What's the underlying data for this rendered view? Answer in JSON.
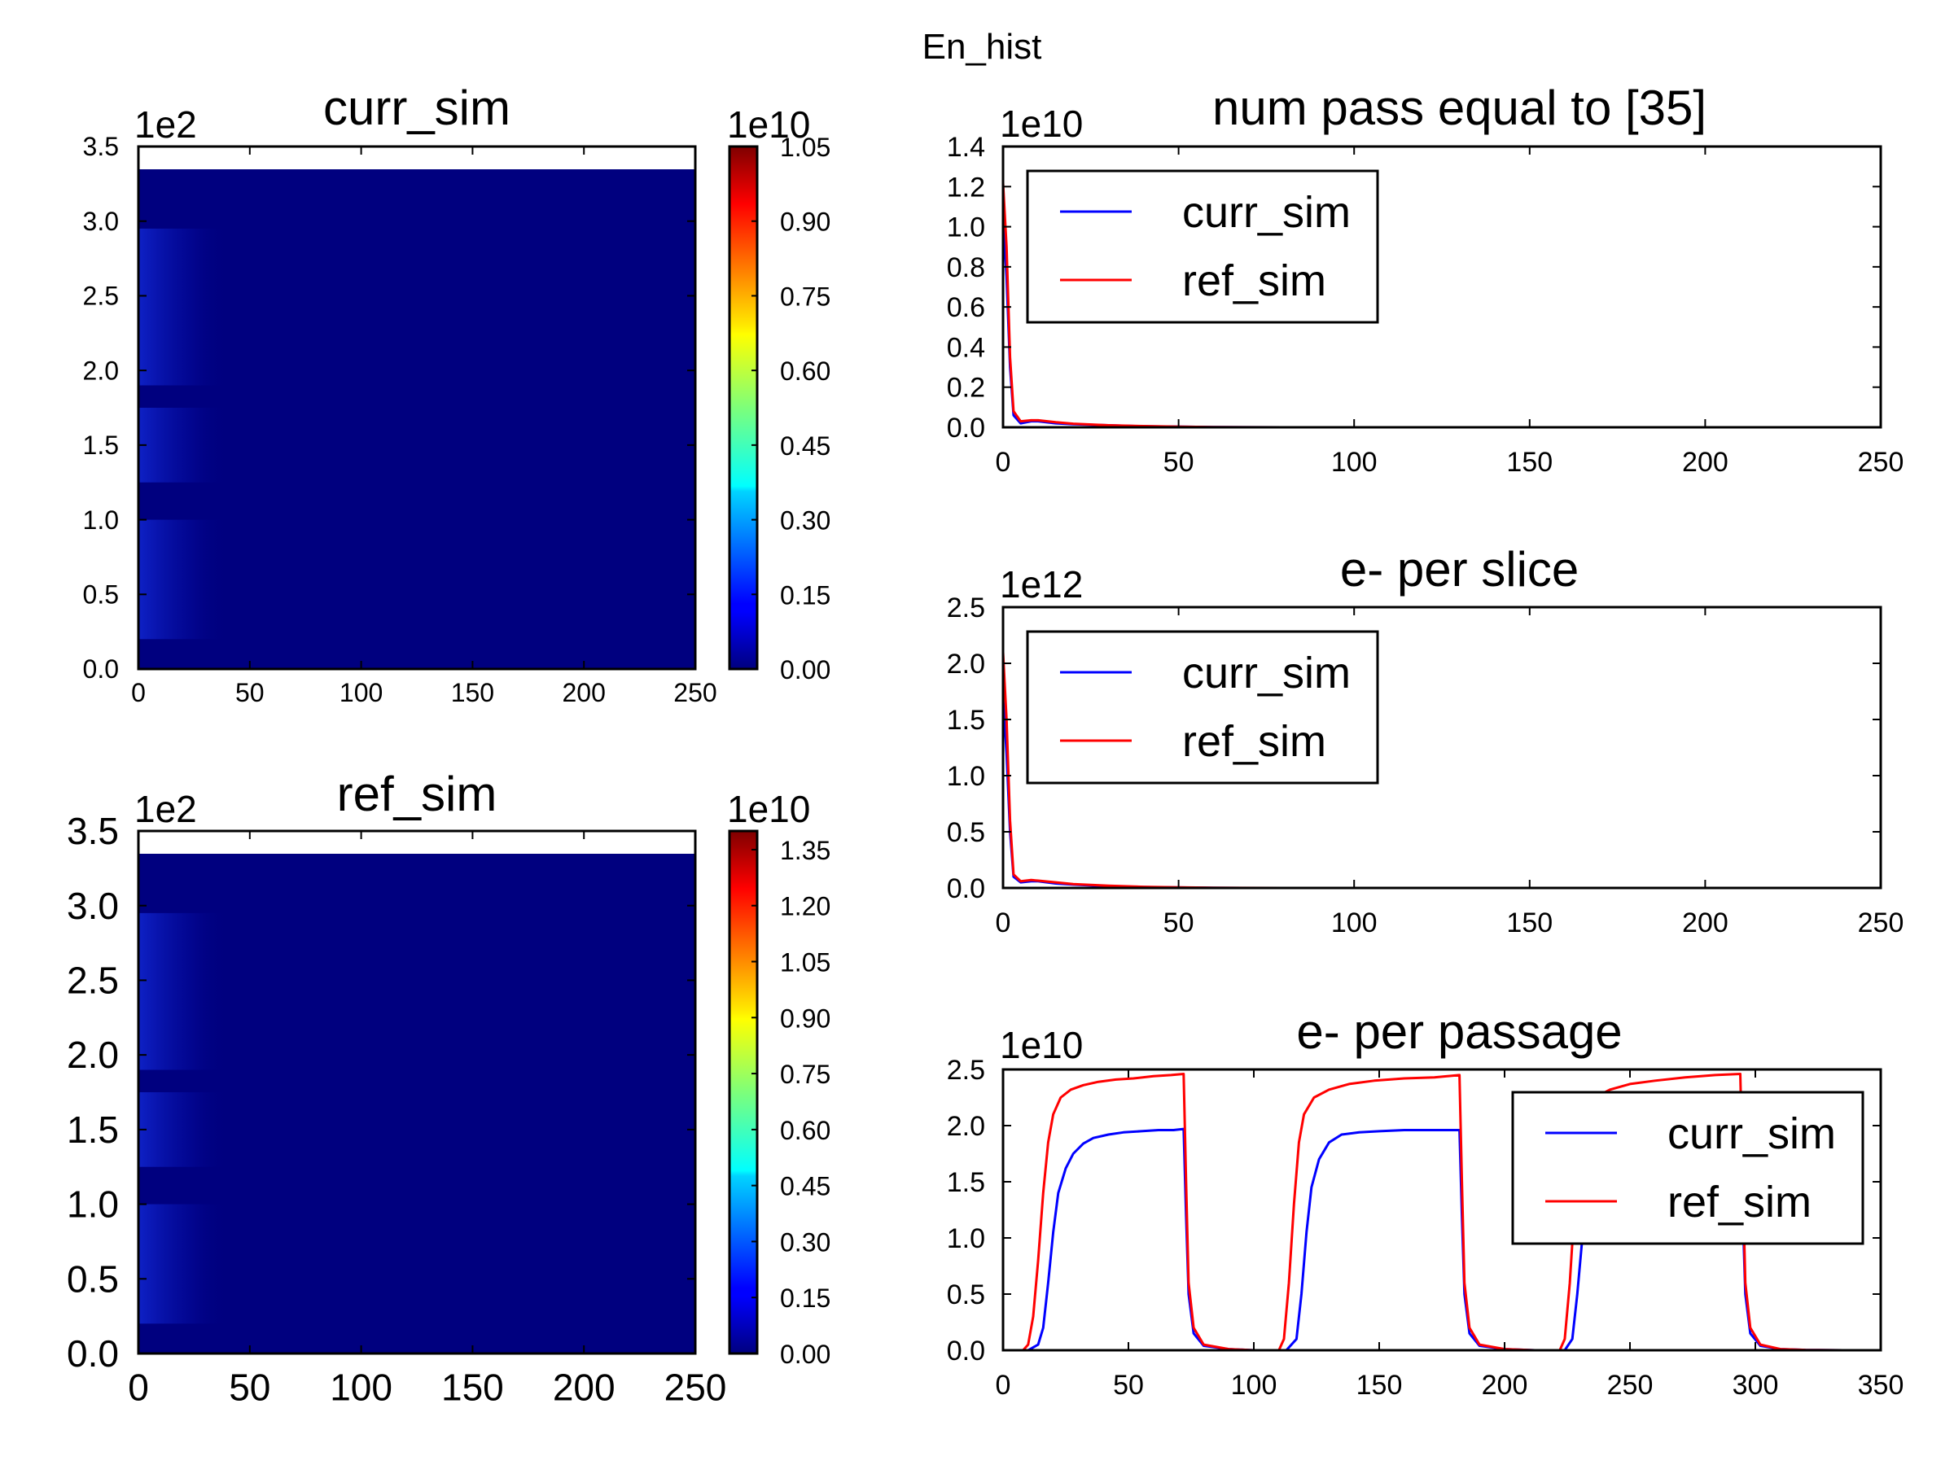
{
  "figure_title": "En_hist",
  "chart_data": [
    {
      "id": "curr_heat",
      "type": "heatmap",
      "title": "curr_sim",
      "x_ticks": [
        "0",
        "50",
        "100",
        "150",
        "200",
        "250"
      ],
      "y_ticks": [
        "0.0",
        "0.5",
        "1.0",
        "1.5",
        "2.0",
        "2.5",
        "3.0",
        "3.5"
      ],
      "y_multiplier": "1e2",
      "xlim": [
        0,
        250
      ],
      "ylim": [
        0,
        350
      ],
      "data_top": 335,
      "colorbar": {
        "multiplier": "1e10",
        "range": [
          0,
          1.05
        ],
        "ticks": [
          "0.00",
          "0.15",
          "0.30",
          "0.45",
          "0.60",
          "0.75",
          "0.90",
          "1.05"
        ]
      },
      "fill_color": "#00007f"
    },
    {
      "id": "ref_heat",
      "type": "heatmap",
      "title": "ref_sim",
      "x_ticks": [
        "0",
        "50",
        "100",
        "150",
        "200",
        "250"
      ],
      "y_ticks": [
        "0.0",
        "0.5",
        "1.0",
        "1.5",
        "2.0",
        "2.5",
        "3.0",
        "3.5"
      ],
      "y_multiplier": "1e2",
      "xlim": [
        0,
        250
      ],
      "ylim": [
        0,
        350
      ],
      "data_top": 335,
      "colorbar": {
        "multiplier": "1e10",
        "range": [
          0,
          1.4
        ],
        "ticks": [
          "0.00",
          "0.15",
          "0.30",
          "0.45",
          "0.60",
          "0.75",
          "0.90",
          "1.05",
          "1.20",
          "1.35"
        ]
      },
      "fill_color": "#00007f"
    },
    {
      "id": "num_pass",
      "type": "line",
      "title": "num pass equal to [35]",
      "y_multiplier": "1e10",
      "xlim": [
        0,
        250
      ],
      "ylim": [
        0,
        1.4
      ],
      "x_ticks": [
        "0",
        "50",
        "100",
        "150",
        "200",
        "250"
      ],
      "y_ticks": [
        "0.0",
        "0.2",
        "0.4",
        "0.6",
        "0.8",
        "1.0",
        "1.2",
        "1.4"
      ],
      "legend_position": "top-left",
      "series": [
        {
          "name": "curr_sim",
          "color": "#0000ff",
          "points": [
            [
              0,
              1.05
            ],
            [
              1,
              0.75
            ],
            [
              2,
              0.3
            ],
            [
              3,
              0.06
            ],
            [
              5,
              0.02
            ],
            [
              8,
              0.03
            ],
            [
              10,
              0.03
            ],
            [
              15,
              0.02
            ],
            [
              20,
              0.015
            ],
            [
              30,
              0.01
            ],
            [
              40,
              0.005
            ],
            [
              50,
              0.003
            ],
            [
              60,
              0.001
            ],
            [
              80,
              0
            ],
            [
              250,
              0
            ]
          ]
        },
        {
          "name": "ref_sim",
          "color": "#ff0000",
          "points": [
            [
              0,
              1.22
            ],
            [
              1,
              0.9
            ],
            [
              2,
              0.35
            ],
            [
              3,
              0.08
            ],
            [
              5,
              0.03
            ],
            [
              8,
              0.035
            ],
            [
              10,
              0.035
            ],
            [
              15,
              0.025
            ],
            [
              20,
              0.018
            ],
            [
              30,
              0.01
            ],
            [
              40,
              0.006
            ],
            [
              50,
              0.003
            ],
            [
              60,
              0.001
            ],
            [
              80,
              0
            ],
            [
              250,
              0
            ]
          ]
        }
      ]
    },
    {
      "id": "per_slice",
      "type": "line",
      "title": "e- per slice",
      "y_multiplier": "1e12",
      "xlim": [
        0,
        250
      ],
      "ylim": [
        0,
        2.5
      ],
      "x_ticks": [
        "0",
        "50",
        "100",
        "150",
        "200",
        "250"
      ],
      "y_ticks": [
        "0.0",
        "0.5",
        "1.0",
        "1.5",
        "2.0",
        "2.5"
      ],
      "legend_position": "top-left",
      "series": [
        {
          "name": "curr_sim",
          "color": "#0000ff",
          "points": [
            [
              0,
              1.7
            ],
            [
              1,
              1.2
            ],
            [
              2,
              0.5
            ],
            [
              3,
              0.1
            ],
            [
              5,
              0.05
            ],
            [
              8,
              0.06
            ],
            [
              10,
              0.06
            ],
            [
              15,
              0.04
            ],
            [
              20,
              0.03
            ],
            [
              30,
              0.015
            ],
            [
              40,
              0.008
            ],
            [
              50,
              0.004
            ],
            [
              60,
              0.001
            ],
            [
              80,
              0
            ],
            [
              250,
              0
            ]
          ]
        },
        {
          "name": "ref_sim",
          "color": "#ff0000",
          "points": [
            [
              0,
              2.1
            ],
            [
              1,
              1.5
            ],
            [
              2,
              0.6
            ],
            [
              3,
              0.12
            ],
            [
              5,
              0.06
            ],
            [
              8,
              0.07
            ],
            [
              10,
              0.065
            ],
            [
              15,
              0.05
            ],
            [
              20,
              0.035
            ],
            [
              30,
              0.02
            ],
            [
              40,
              0.01
            ],
            [
              50,
              0.005
            ],
            [
              60,
              0.002
            ],
            [
              80,
              0
            ],
            [
              250,
              0
            ]
          ]
        }
      ]
    },
    {
      "id": "per_passage",
      "type": "line",
      "title": "e- per passage",
      "y_multiplier": "1e10",
      "xlim": [
        0,
        350
      ],
      "ylim": [
        0,
        2.5
      ],
      "x_ticks": [
        "0",
        "50",
        "100",
        "150",
        "200",
        "250",
        "300",
        "350"
      ],
      "y_ticks": [
        "0.0",
        "0.5",
        "1.0",
        "1.5",
        "2.0",
        "2.5"
      ],
      "legend_position": "upper-right",
      "series": [
        {
          "name": "curr_sim",
          "color": "#0000ff",
          "points": [
            [
              0,
              0
            ],
            [
              10,
              0
            ],
            [
              14,
              0.05
            ],
            [
              16,
              0.2
            ],
            [
              18,
              0.6
            ],
            [
              20,
              1.05
            ],
            [
              22,
              1.4
            ],
            [
              25,
              1.62
            ],
            [
              28,
              1.75
            ],
            [
              32,
              1.84
            ],
            [
              36,
              1.89
            ],
            [
              42,
              1.92
            ],
            [
              48,
              1.94
            ],
            [
              55,
              1.95
            ],
            [
              62,
              1.96
            ],
            [
              68,
              1.96
            ],
            [
              72,
              1.97
            ],
            [
              73,
              1.2
            ],
            [
              74,
              0.5
            ],
            [
              76,
              0.15
            ],
            [
              80,
              0.04
            ],
            [
              90,
              0.01
            ],
            [
              100,
              0
            ],
            [
              113,
              0
            ],
            [
              117,
              0.1
            ],
            [
              119,
              0.5
            ],
            [
              121,
              1.05
            ],
            [
              123,
              1.45
            ],
            [
              126,
              1.7
            ],
            [
              130,
              1.85
            ],
            [
              135,
              1.92
            ],
            [
              142,
              1.94
            ],
            [
              150,
              1.95
            ],
            [
              160,
              1.96
            ],
            [
              170,
              1.96
            ],
            [
              182,
              1.96
            ],
            [
              183,
              1.2
            ],
            [
              184,
              0.5
            ],
            [
              186,
              0.15
            ],
            [
              190,
              0.04
            ],
            [
              200,
              0.01
            ],
            [
              212,
              0
            ],
            [
              224,
              0
            ],
            [
              227,
              0.1
            ],
            [
              229,
              0.5
            ],
            [
              231,
              1.0
            ],
            [
              233,
              1.4
            ],
            [
              236,
              1.7
            ],
            [
              240,
              1.84
            ],
            [
              245,
              1.9
            ],
            [
              252,
              1.93
            ],
            [
              260,
              1.94
            ],
            [
              272,
              1.95
            ],
            [
              284,
              1.95
            ],
            [
              294,
              1.95
            ],
            [
              295,
              1.2
            ],
            [
              296,
              0.5
            ],
            [
              298,
              0.15
            ],
            [
              302,
              0.04
            ],
            [
              310,
              0.01
            ],
            [
              320,
              0.003
            ],
            [
              335,
              0
            ]
          ]
        },
        {
          "name": "ref_sim",
          "color": "#ff0000",
          "points": [
            [
              0,
              0
            ],
            [
              8,
              0
            ],
            [
              10,
              0.05
            ],
            [
              12,
              0.3
            ],
            [
              14,
              0.8
            ],
            [
              16,
              1.4
            ],
            [
              18,
              1.85
            ],
            [
              20,
              2.1
            ],
            [
              23,
              2.25
            ],
            [
              27,
              2.32
            ],
            [
              32,
              2.36
            ],
            [
              38,
              2.39
            ],
            [
              45,
              2.41
            ],
            [
              52,
              2.42
            ],
            [
              60,
              2.44
            ],
            [
              67,
              2.45
            ],
            [
              72,
              2.46
            ],
            [
              73,
              1.5
            ],
            [
              74,
              0.6
            ],
            [
              76,
              0.2
            ],
            [
              80,
              0.05
            ],
            [
              90,
              0.01
            ],
            [
              100,
              0
            ],
            [
              110,
              0
            ],
            [
              112,
              0.1
            ],
            [
              114,
              0.6
            ],
            [
              116,
              1.3
            ],
            [
              118,
              1.85
            ],
            [
              120,
              2.1
            ],
            [
              124,
              2.25
            ],
            [
              130,
              2.32
            ],
            [
              138,
              2.37
            ],
            [
              148,
              2.4
            ],
            [
              160,
              2.42
            ],
            [
              172,
              2.43
            ],
            [
              182,
              2.45
            ],
            [
              183,
              1.5
            ],
            [
              184,
              0.6
            ],
            [
              186,
              0.2
            ],
            [
              190,
              0.05
            ],
            [
              200,
              0.01
            ],
            [
              212,
              0
            ],
            [
              222,
              0
            ],
            [
              224,
              0.1
            ],
            [
              226,
              0.6
            ],
            [
              228,
              1.3
            ],
            [
              230,
              1.85
            ],
            [
              232,
              2.1
            ],
            [
              236,
              2.25
            ],
            [
              242,
              2.32
            ],
            [
              250,
              2.37
            ],
            [
              260,
              2.4
            ],
            [
              272,
              2.43
            ],
            [
              284,
              2.45
            ],
            [
              294,
              2.46
            ],
            [
              295,
              1.5
            ],
            [
              296,
              0.6
            ],
            [
              298,
              0.2
            ],
            [
              302,
              0.05
            ],
            [
              310,
              0.01
            ],
            [
              320,
              0.003
            ],
            [
              335,
              0
            ]
          ]
        }
      ]
    }
  ]
}
